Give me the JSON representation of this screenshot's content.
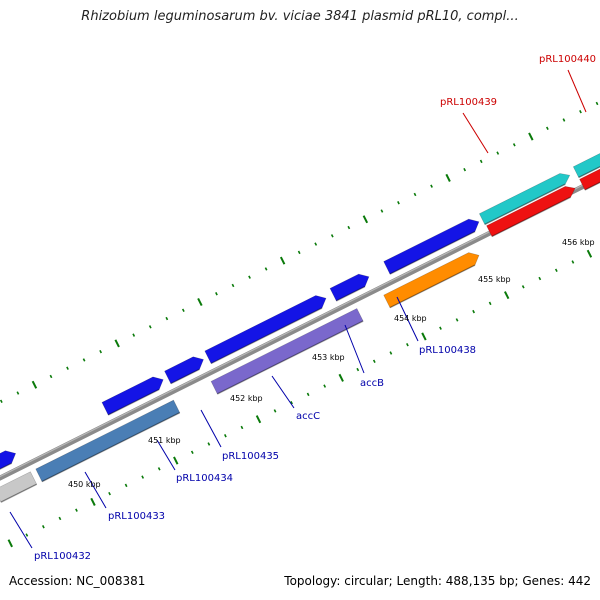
{
  "header": {
    "title": "Rhizobium leguminosarum bv. viciae 3841 plasmid pRL10, compl..."
  },
  "footer": {
    "accession": "Accession: NC_008381",
    "topology": "Topology: circular; Length: 488,135 bp; Genes: 442"
  },
  "ruler": {
    "ticks": [
      "450 kbp",
      "451 kbp",
      "452 kbp",
      "453 kbp",
      "454 kbp",
      "455 kbp",
      "456 kbp"
    ]
  },
  "genes": [
    {
      "label": "pRL100432",
      "color": "#0000aa"
    },
    {
      "label": "pRL100433",
      "color": "#0000aa"
    },
    {
      "label": "pRL100434",
      "color": "#0000aa"
    },
    {
      "label": "pRL100435",
      "color": "#0000aa"
    },
    {
      "label": "accC",
      "color": "#0000aa"
    },
    {
      "label": "accB",
      "color": "#0000aa"
    },
    {
      "label": "pRL100438",
      "color": "#0000aa"
    },
    {
      "label": "pRL100439",
      "color": "#cc0000"
    },
    {
      "label": "pRL100440",
      "color": "#cc0000"
    }
  ],
  "colors": {
    "backbone": "#8a8a8a",
    "tick": "#0a7a0a",
    "blue_feature": "#1414e6",
    "steelblue_feature": "#4a7eb5",
    "purple_feature": "#7a68cc",
    "orange_feature": "#ff8c00",
    "cyan_feature": "#22c8c8",
    "red_feature": "#ee1111",
    "gray_feature": "#c8c8c8"
  }
}
